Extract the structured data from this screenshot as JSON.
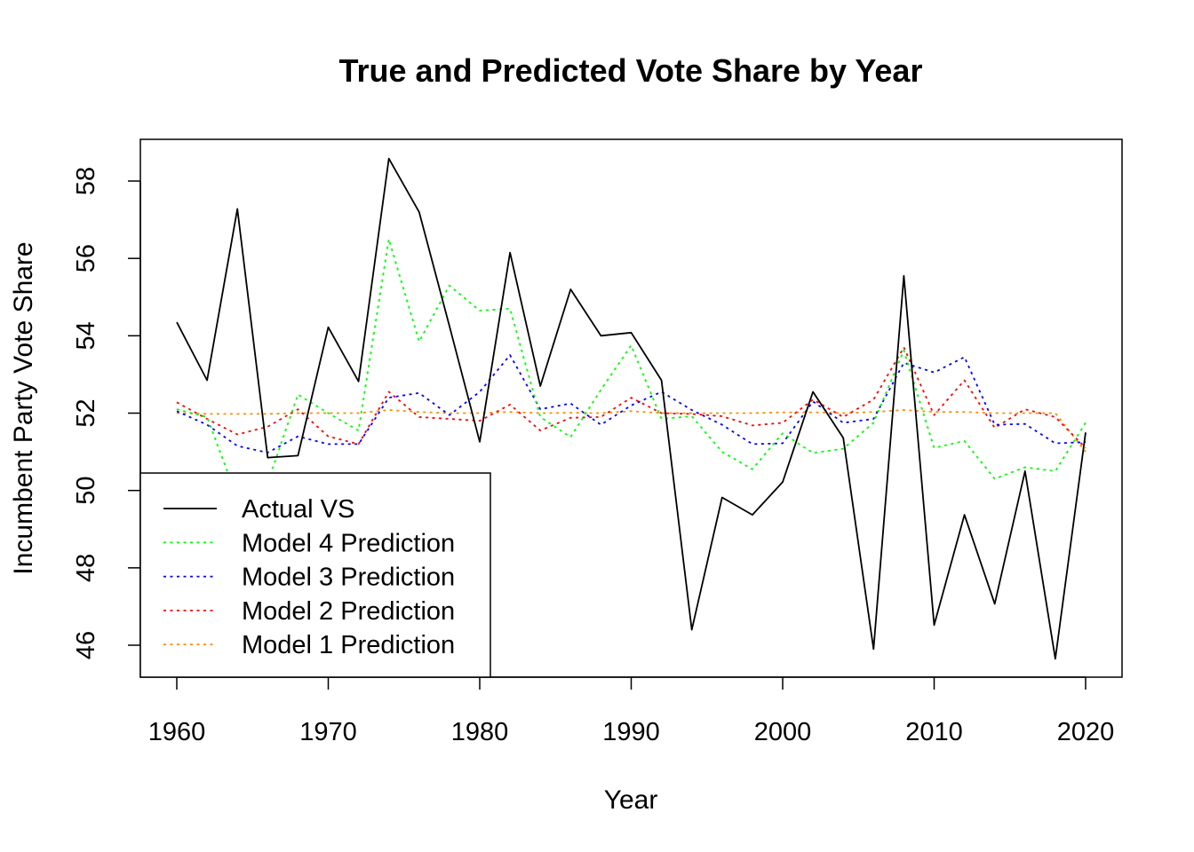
{
  "chart_data": {
    "type": "line",
    "title": "True and Predicted Vote Share by Year",
    "xlabel": "Year",
    "ylabel": "Incumbent Party Vote Share",
    "xlim": [
      1958,
      2022
    ],
    "ylim": [
      45.1,
      59.0
    ],
    "xticks": [
      1960,
      1970,
      1980,
      1990,
      2000,
      2010,
      2020
    ],
    "yticks": [
      46,
      48,
      50,
      52,
      54,
      56,
      58
    ],
    "grid": false,
    "legend_position": "bottom-left",
    "x": [
      1960,
      1962,
      1964,
      1966,
      1968,
      1970,
      1972,
      1974,
      1976,
      1978,
      1980,
      1982,
      1984,
      1986,
      1988,
      1990,
      1992,
      1994,
      1996,
      1998,
      2000,
      2002,
      2004,
      2006,
      2008,
      2010,
      2012,
      2014,
      2016,
      2018,
      2020
    ],
    "series": [
      {
        "name": "Actual VS",
        "color": "#000000",
        "dash": "solid",
        "values": [
          54.35,
          52.85,
          57.28,
          50.85,
          50.9,
          54.22,
          52.82,
          58.58,
          57.2,
          54.25,
          51.26,
          56.15,
          52.7,
          55.2,
          54.0,
          54.08,
          52.85,
          46.4,
          49.82,
          49.37,
          50.22,
          52.55,
          51.36,
          45.9,
          55.55,
          46.52,
          49.37,
          47.07,
          50.5,
          45.65,
          51.5
        ]
      },
      {
        "name": "Model 4 Prediction",
        "color": "#00ff00",
        "dash": "dotted",
        "values": [
          52.1,
          51.9,
          49.8,
          50.2,
          52.48,
          52.0,
          51.55,
          56.5,
          53.85,
          55.3,
          54.65,
          54.7,
          51.9,
          51.38,
          52.6,
          53.75,
          51.85,
          51.92,
          51.0,
          50.55,
          51.48,
          50.97,
          51.08,
          51.75,
          53.62,
          51.1,
          51.28,
          50.3,
          50.6,
          50.5,
          51.75
        ]
      },
      {
        "name": "Model 3 Prediction",
        "color": "#0000ff",
        "dash": "dotted",
        "values": [
          52.05,
          51.7,
          51.15,
          50.98,
          51.4,
          51.2,
          51.2,
          52.4,
          52.52,
          51.95,
          52.55,
          53.5,
          52.1,
          52.25,
          51.7,
          52.2,
          52.55,
          52.08,
          51.7,
          51.2,
          51.22,
          52.3,
          51.75,
          51.85,
          53.3,
          53.05,
          53.45,
          51.7,
          51.72,
          51.22,
          51.25
        ]
      },
      {
        "name": "Model 2 Prediction",
        "color": "#ff0000",
        "dash": "dotted",
        "values": [
          52.28,
          51.85,
          51.45,
          51.65,
          52.1,
          51.4,
          51.2,
          52.55,
          51.9,
          51.85,
          51.8,
          52.22,
          51.55,
          51.88,
          51.9,
          52.4,
          52.0,
          51.98,
          51.92,
          51.68,
          51.75,
          52.35,
          51.9,
          52.35,
          53.7,
          51.95,
          52.85,
          51.62,
          52.1,
          51.9,
          51.1
        ]
      },
      {
        "name": "Model 1 Prediction",
        "color": "#ff8c00",
        "dash": "dotted",
        "values": [
          52.0,
          51.98,
          51.98,
          51.98,
          52.0,
          52.0,
          52.0,
          52.08,
          52.03,
          52.0,
          52.0,
          52.03,
          52.0,
          52.01,
          52.0,
          52.05,
          52.0,
          52.0,
          52.0,
          52.0,
          52.02,
          52.02,
          52.0,
          52.03,
          52.08,
          52.03,
          52.03,
          52.0,
          52.0,
          52.0,
          51.0
        ]
      }
    ],
    "legend_order": [
      "Actual VS",
      "Model 4 Prediction",
      "Model 3 Prediction",
      "Model 2 Prediction",
      "Model 1 Prediction"
    ]
  }
}
